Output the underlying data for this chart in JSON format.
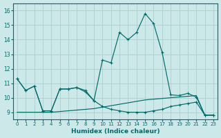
{
  "xlabel": "Humidex (Indice chaleur)",
  "background_color": "#cce8e8",
  "grid_color": "#aacfcf",
  "line_color": "#006b6b",
  "xlim": [
    -0.5,
    23.5
  ],
  "ylim": [
    8.5,
    16.5
  ],
  "yticks": [
    9,
    10,
    11,
    12,
    13,
    14,
    15,
    16
  ],
  "xticks": [
    0,
    1,
    2,
    3,
    4,
    5,
    6,
    7,
    8,
    9,
    10,
    11,
    12,
    13,
    14,
    15,
    16,
    17,
    18,
    19,
    20,
    21,
    22,
    23
  ],
  "curve_main_x": [
    0,
    1,
    2,
    3,
    4,
    5,
    6,
    7,
    8,
    9,
    10,
    11,
    12,
    13,
    14,
    15,
    16,
    17,
    18,
    19,
    20,
    21,
    22,
    23
  ],
  "curve_main_y": [
    11.3,
    10.5,
    10.8,
    9.1,
    9.1,
    10.6,
    10.6,
    10.7,
    10.5,
    9.8,
    9.4,
    9.2,
    9.1,
    9.0,
    9.0,
    9.0,
    9.1,
    9.2,
    9.4,
    9.5,
    9.6,
    9.7,
    8.8,
    8.8
  ],
  "curve_peak_x": [
    0,
    1,
    2,
    3,
    4,
    5,
    6,
    7,
    8,
    9,
    10,
    11,
    12,
    13,
    14,
    15,
    16,
    17,
    18,
    19,
    20,
    21,
    22,
    23
  ],
  "curve_peak_y": [
    11.3,
    10.5,
    10.8,
    9.1,
    9.1,
    10.6,
    10.6,
    10.7,
    10.4,
    9.8,
    12.6,
    12.4,
    14.5,
    14.0,
    14.5,
    15.8,
    15.1,
    13.1,
    10.2,
    10.15,
    10.3,
    10.05,
    8.8,
    8.8
  ],
  "curve_flat_x": [
    0,
    1,
    2,
    3,
    4,
    5,
    6,
    7,
    8,
    9,
    10,
    11,
    12,
    13,
    14,
    15,
    16,
    17,
    18,
    19,
    20,
    21,
    22,
    23
  ],
  "curve_flat_y": [
    9.0,
    9.0,
    9.0,
    9.0,
    9.0,
    9.05,
    9.1,
    9.15,
    9.2,
    9.25,
    9.35,
    9.45,
    9.55,
    9.65,
    9.75,
    9.85,
    9.9,
    9.95,
    10.0,
    10.05,
    10.1,
    10.15,
    8.8,
    8.8
  ]
}
